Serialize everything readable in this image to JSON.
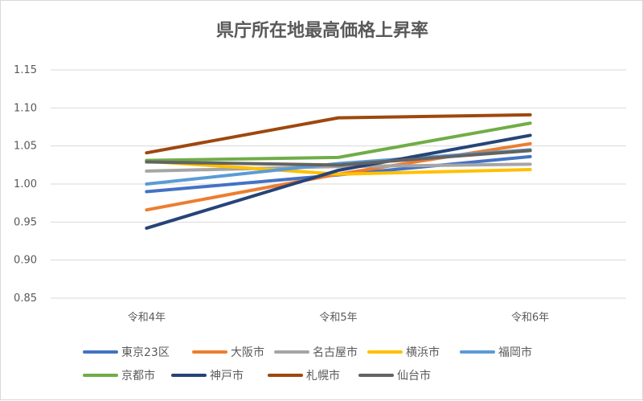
{
  "chart_data": {
    "type": "line",
    "title": "県庁所在地最高価格上昇率",
    "xlabel": "",
    "ylabel": "",
    "categories": [
      "令和4年",
      "令和5年",
      "令和6年"
    ],
    "ylim": [
      0.85,
      1.15
    ],
    "yticks": [
      "0.85",
      "0.90",
      "0.95",
      "1.00",
      "1.05",
      "1.10",
      "1.15"
    ],
    "grid": true,
    "legend": "bottom",
    "series": [
      {
        "name": "東京23区",
        "color": "#4472C4",
        "values": [
          0.99,
          1.012,
          1.036
        ]
      },
      {
        "name": "大阪市",
        "color": "#ED7D31",
        "values": [
          0.966,
          1.013,
          1.053
        ]
      },
      {
        "name": "名古屋市",
        "color": "#A5A5A5",
        "values": [
          1.017,
          1.023,
          1.026
        ]
      },
      {
        "name": "横浜市",
        "color": "#FFC000",
        "values": [
          1.03,
          1.013,
          1.019
        ]
      },
      {
        "name": "福岡市",
        "color": "#5B9BD5",
        "values": [
          1.0,
          1.027,
          1.045
        ]
      },
      {
        "name": "京都市",
        "color": "#70AD47",
        "values": [
          1.031,
          1.035,
          1.08
        ]
      },
      {
        "name": "神戸市",
        "color": "#264478",
        "values": [
          0.942,
          1.018,
          1.064
        ]
      },
      {
        "name": "札幌市",
        "color": "#9E480E",
        "values": [
          1.041,
          1.087,
          1.091
        ]
      },
      {
        "name": "仙台市",
        "color": "#636363",
        "values": [
          1.029,
          1.025,
          1.044
        ]
      }
    ]
  }
}
